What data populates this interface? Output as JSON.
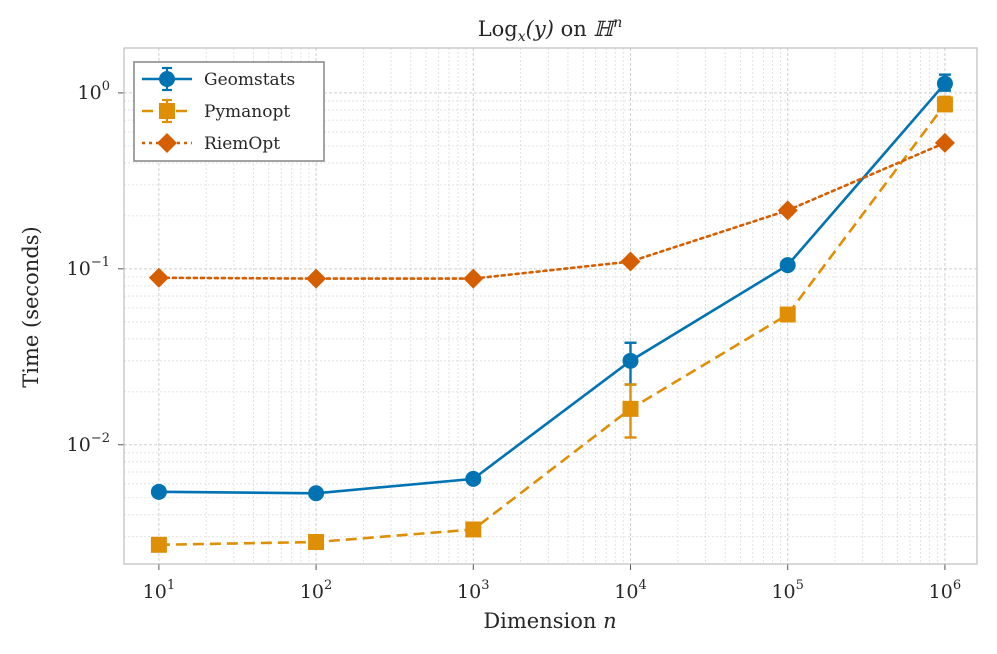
{
  "chart_data": {
    "type": "line",
    "title": {
      "prefix": "Log",
      "sub": "x",
      "arg": "(y)",
      "mid": " on ",
      "space": "ℍ",
      "sup": "n"
    },
    "xlabel": {
      "text": "Dimension ",
      "var": "n"
    },
    "ylabel": "Time (seconds)",
    "x_scale": "log",
    "y_scale": "log",
    "xlim": [
      6,
      1600000
    ],
    "ylim": [
      0.0021,
      1.8
    ],
    "x": [
      10,
      100,
      1000,
      10000,
      100000,
      1000000
    ],
    "x_ticks": [
      {
        "value": 10,
        "base": "10",
        "exp": "1"
      },
      {
        "value": 100,
        "base": "10",
        "exp": "2"
      },
      {
        "value": 1000,
        "base": "10",
        "exp": "3"
      },
      {
        "value": 10000,
        "base": "10",
        "exp": "4"
      },
      {
        "value": 100000,
        "base": "10",
        "exp": "5"
      },
      {
        "value": 1000000,
        "base": "10",
        "exp": "6"
      }
    ],
    "y_ticks": [
      {
        "value": 0.01,
        "base": "10",
        "exp": "−2"
      },
      {
        "value": 0.1,
        "base": "10",
        "exp": "−1"
      },
      {
        "value": 1,
        "base": "10",
        "exp": "0"
      }
    ],
    "grid": true,
    "legend_position": "top-left",
    "series": [
      {
        "name": "Geomstats",
        "color": "#0173b2",
        "marker": "circle",
        "line": "solid",
        "values": [
          0.0054,
          0.0053,
          0.0064,
          0.03,
          0.105,
          1.13
        ],
        "err_low": [
          0.0054,
          0.0053,
          0.0064,
          0.022,
          0.105,
          1.03
        ],
        "err_high": [
          0.0054,
          0.0053,
          0.0064,
          0.038,
          0.105,
          1.27
        ]
      },
      {
        "name": "Pymanopt",
        "color": "#de8f05",
        "marker": "square",
        "line": "dashed",
        "values": [
          0.0027,
          0.0028,
          0.0033,
          0.016,
          0.055,
          0.86
        ],
        "err_low": [
          0.0027,
          0.0028,
          0.0033,
          0.011,
          0.055,
          0.79
        ],
        "err_high": [
          0.0027,
          0.0028,
          0.0033,
          0.022,
          0.055,
          0.95
        ]
      },
      {
        "name": "RiemOpt",
        "color": "#d55e00",
        "marker": "diamond",
        "line": "dotted",
        "values": [
          0.089,
          0.088,
          0.088,
          0.11,
          0.215,
          0.52
        ],
        "err_low": [
          0.089,
          0.088,
          0.088,
          0.11,
          0.215,
          0.52
        ],
        "err_high": [
          0.089,
          0.088,
          0.088,
          0.11,
          0.215,
          0.52
        ]
      }
    ]
  }
}
